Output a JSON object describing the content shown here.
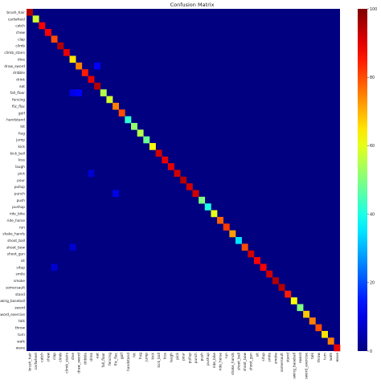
{
  "chart_data": {
    "type": "heatmap",
    "title": "Confusion Matrix",
    "xlabel": "",
    "ylabel": "",
    "labels": [
      "brush_hair",
      "cartwheel",
      "catch",
      "chew",
      "clap",
      "climb",
      "climb_stairs",
      "dive",
      "draw_sword",
      "dribble",
      "drink",
      "eat",
      "fall_floor",
      "fencing",
      "flic_flac",
      "golf",
      "handstand",
      "hit",
      "hug",
      "jump",
      "kick",
      "kick_ball",
      "kiss",
      "laugh",
      "pick",
      "pour",
      "pullup",
      "punch",
      "push",
      "pushup",
      "ride_bike",
      "ride_horse",
      "run",
      "shake_hands",
      "shoot_ball",
      "shoot_bow",
      "shoot_gun",
      "sit",
      "situp",
      "smile",
      "smoke",
      "somersault",
      "stand",
      "swing_baseball",
      "sword",
      "sword_exercise",
      "talk",
      "throw",
      "turn",
      "walk",
      "wave"
    ],
    "diagonal": [
      95,
      58,
      88,
      88,
      80,
      95,
      90,
      65,
      75,
      85,
      90,
      95,
      55,
      58,
      75,
      80,
      42,
      52,
      55,
      48,
      62,
      92,
      90,
      90,
      92,
      95,
      92,
      92,
      50,
      40,
      60,
      78,
      82,
      72,
      35,
      80,
      92,
      88,
      88,
      92,
      95,
      95,
      85,
      62,
      50,
      68,
      75,
      80,
      65,
      75,
      90
    ],
    "off_diagonal_cells": [
      {
        "row": "draw_sword",
        "col": "eat",
        "value": 12
      },
      {
        "row": "fall_floor",
        "col": "dive",
        "value": 10
      },
      {
        "row": "fall_floor",
        "col": "draw_sword",
        "value": 12
      },
      {
        "row": "punch",
        "col": "flic_flac",
        "value": 10
      },
      {
        "row": "pick",
        "col": "drink",
        "value": 8
      },
      {
        "row": "shoot_bow",
        "col": "dive",
        "value": 8
      },
      {
        "row": "situp",
        "col": "clap",
        "value": 8
      }
    ],
    "colorbar": {
      "colormap": "jet",
      "range": [
        0,
        100
      ],
      "ticks": [
        "0",
        "20",
        "40",
        "60",
        "80",
        "100"
      ]
    }
  }
}
